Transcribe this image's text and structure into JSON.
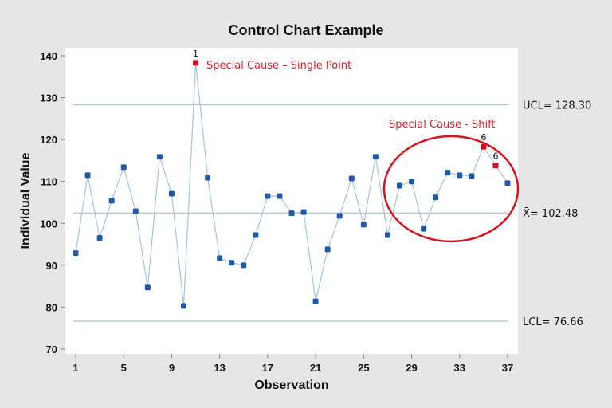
{
  "chart_data": {
    "type": "line",
    "title": "Control Chart Example",
    "xlabel": "Observation",
    "ylabel": "Individual Value",
    "xlim": [
      1,
      37
    ],
    "ylim": [
      70,
      140
    ],
    "x_ticks": [
      1,
      5,
      9,
      13,
      17,
      21,
      25,
      29,
      33,
      37
    ],
    "y_ticks": [
      70,
      80,
      90,
      100,
      110,
      120,
      130,
      140
    ],
    "grid": false,
    "x": [
      1,
      2,
      3,
      4,
      5,
      6,
      7,
      8,
      9,
      10,
      11,
      12,
      13,
      14,
      15,
      16,
      17,
      18,
      19,
      20,
      21,
      22,
      23,
      24,
      25,
      26,
      27,
      28,
      29,
      30,
      31,
      32,
      33,
      34,
      35,
      36,
      37
    ],
    "values": [
      92.9,
      111.5,
      96.5,
      105.4,
      113.4,
      102.9,
      84.7,
      115.9,
      107.1,
      80.3,
      138.3,
      110.9,
      91.7,
      90.6,
      90.0,
      97.2,
      106.5,
      106.5,
      102.4,
      102.7,
      81.4,
      93.8,
      101.8,
      110.7,
      99.7,
      115.9,
      97.2,
      109.0,
      110.0,
      98.7,
      106.2,
      112.1,
      111.5,
      111.3,
      118.3,
      113.8,
      109.6
    ],
    "flagged_points": [
      {
        "x": 11,
        "label": "1"
      },
      {
        "x": 35,
        "label": "6"
      },
      {
        "x": 36,
        "label": "6"
      }
    ],
    "control_lines": [
      {
        "name": "UCL",
        "value": 128.3,
        "label": "UCL= 128.30"
      },
      {
        "name": "mean",
        "value": 102.48,
        "label": "X̄= 102.48"
      },
      {
        "name": "LCL",
        "value": 76.66,
        "label": "LCL= 76.66"
      }
    ],
    "annotations": {
      "single_point": "Special Cause – Single Point",
      "shift": "Special Cause - Shift"
    },
    "colors": {
      "point": "#1f5aa6",
      "flagged": "#d0101c",
      "line": "#a9c4d8",
      "annotation": "#e0202a",
      "limit_line": "#b8c4c8"
    }
  }
}
